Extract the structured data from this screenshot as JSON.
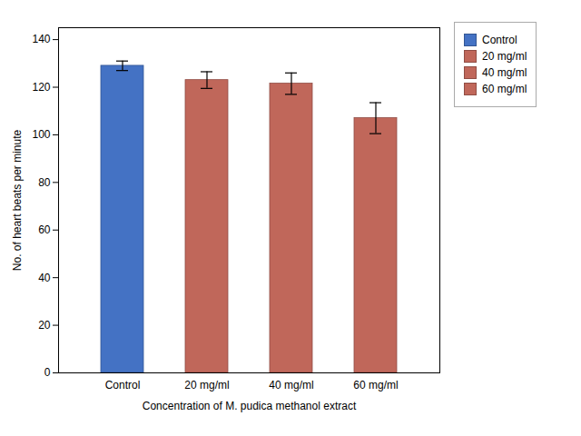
{
  "chart_data": {
    "type": "bar",
    "categories": [
      "Control",
      "20 mg/ml",
      "40 mg/ml",
      "60 mg/ml"
    ],
    "values": [
      129,
      123,
      121.5,
      107
    ],
    "errors": [
      2.0,
      3.5,
      4.5,
      6.5
    ],
    "colors": [
      "#4472C4",
      "#C0675A",
      "#C0675A",
      "#C0675A"
    ],
    "xlabel": "Concentration of M. pudica methanol extract",
    "ylabel": "No. of heart beats per minute",
    "ylim": [
      0,
      145
    ],
    "yticks": [
      0,
      20,
      40,
      60,
      80,
      100,
      120,
      140
    ],
    "legend": "upper right",
    "grid": false
  }
}
